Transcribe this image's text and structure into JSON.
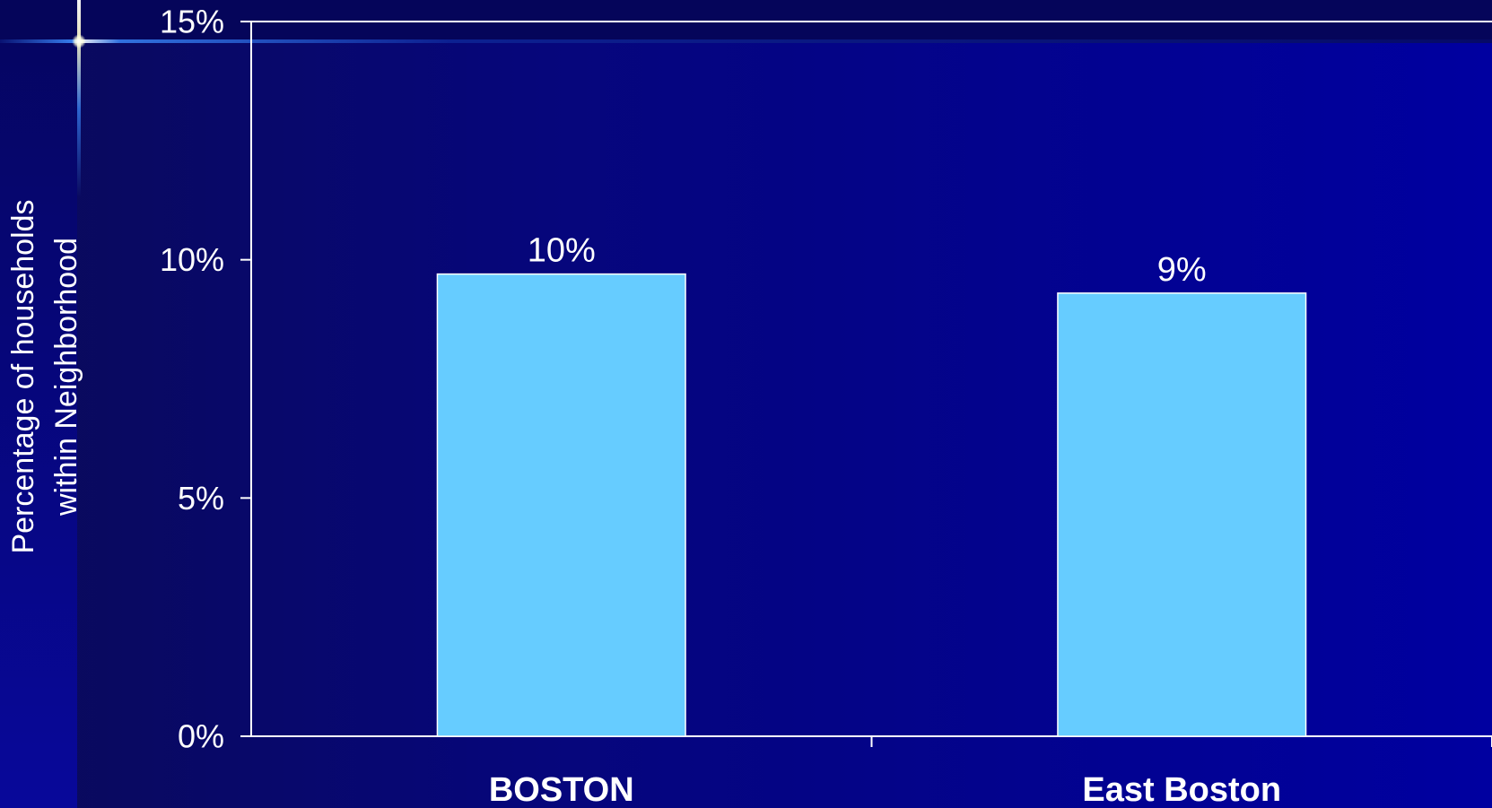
{
  "chart_data": {
    "type": "bar",
    "categories": [
      "BOSTON",
      "East Boston"
    ],
    "values": [
      9.7,
      9.3
    ],
    "data_labels": [
      "10%",
      "9%"
    ],
    "ylabel_lines": [
      "Percentage of households",
      "within Neighborhood"
    ],
    "ylim": [
      0,
      15
    ],
    "yticks": [
      0,
      5,
      10,
      15
    ],
    "ytick_labels": [
      "0%",
      "5%",
      "10%",
      "15%"
    ],
    "grid": false,
    "legend": "none",
    "colors": {
      "bar": "#66ccff",
      "bar_border": "#ffffff",
      "axis": "#ffffff",
      "text": "#ffffff"
    }
  }
}
